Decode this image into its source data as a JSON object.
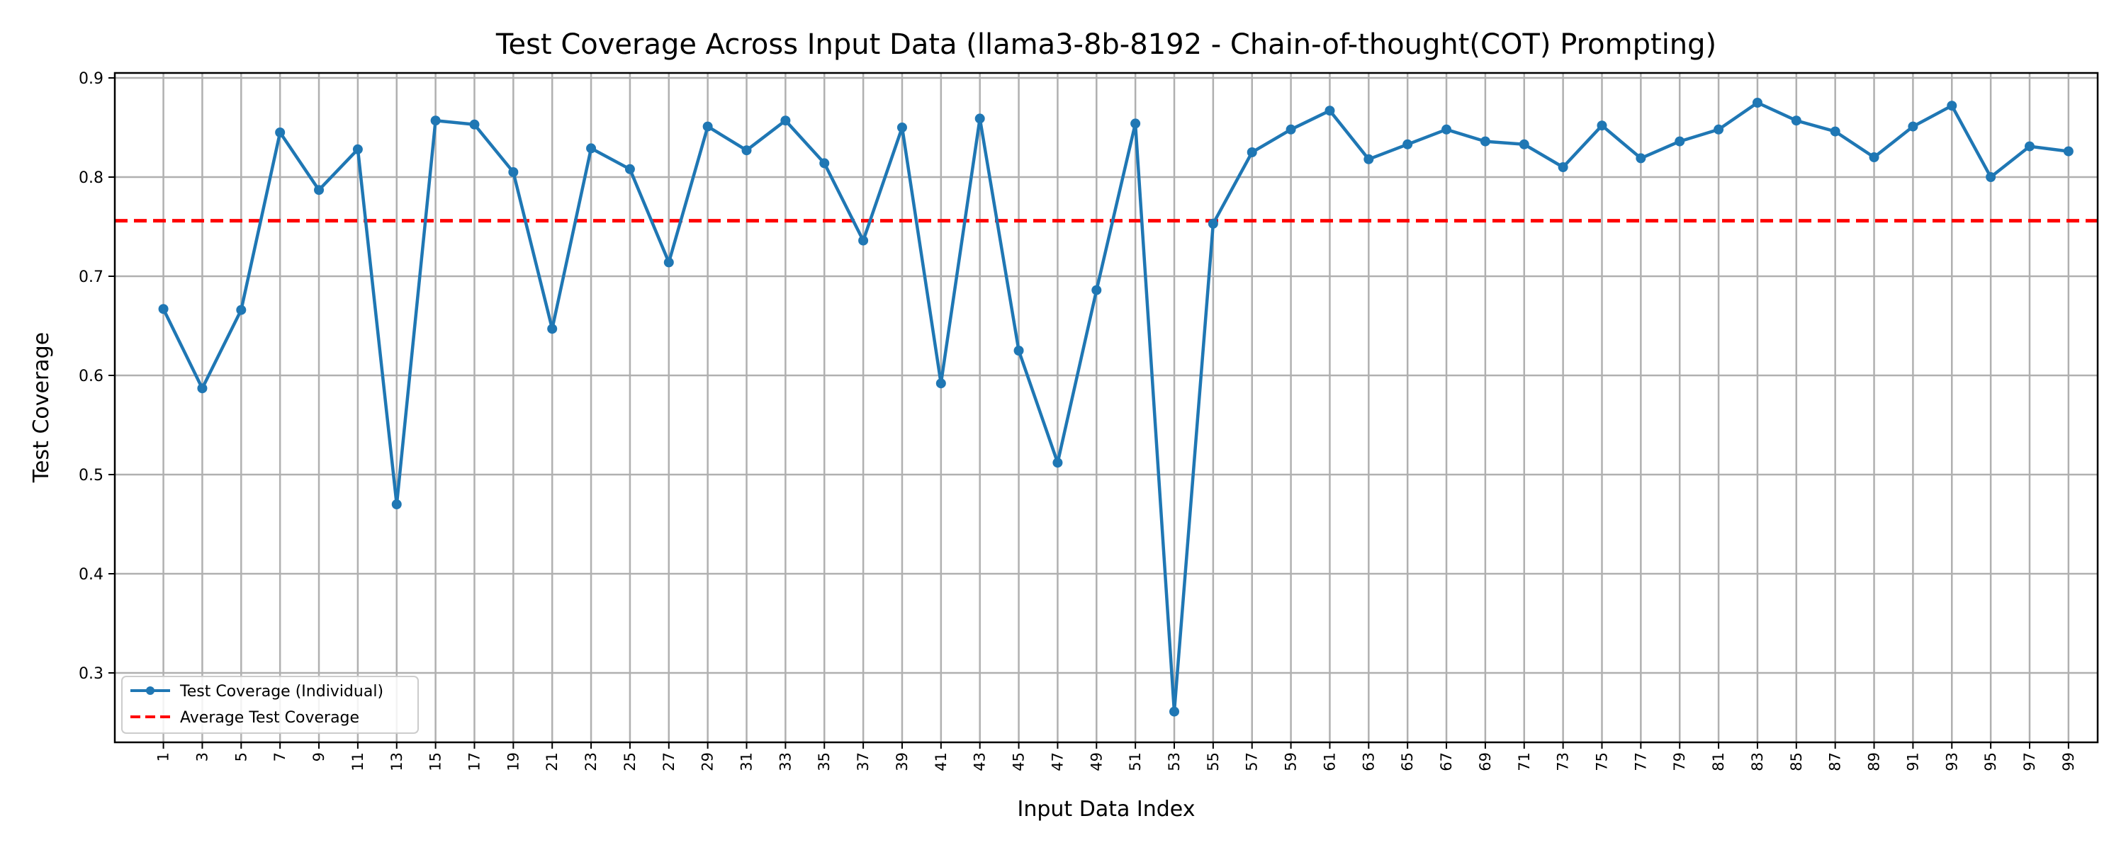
{
  "chart_data": {
    "type": "line",
    "title": "Test Coverage Across Input Data (llama3-8b-8192 - Chain-of-thought(COT) Prompting)",
    "xlabel": "Input Data Index",
    "ylabel": "Test Coverage",
    "xlim": [
      -1.5,
      100.5
    ],
    "ylim": [
      0.23,
      0.905
    ],
    "grid": true,
    "legend_position": "lower-left",
    "x": [
      1,
      3,
      5,
      7,
      9,
      11,
      13,
      15,
      17,
      19,
      21,
      23,
      25,
      27,
      29,
      31,
      33,
      35,
      37,
      39,
      41,
      43,
      45,
      47,
      49,
      51,
      53,
      55,
      57,
      59,
      61,
      63,
      65,
      67,
      69,
      71,
      73,
      75,
      77,
      79,
      81,
      83,
      85,
      87,
      89,
      91,
      93,
      95,
      97,
      99
    ],
    "x_tick_labels": [
      "1",
      "3",
      "5",
      "7",
      "9",
      "11",
      "13",
      "15",
      "17",
      "19",
      "21",
      "23",
      "25",
      "27",
      "29",
      "31",
      "33",
      "35",
      "37",
      "39",
      "41",
      "43",
      "45",
      "47",
      "49",
      "51",
      "53",
      "55",
      "57",
      "59",
      "61",
      "63",
      "65",
      "67",
      "69",
      "71",
      "73",
      "75",
      "77",
      "79",
      "81",
      "83",
      "85",
      "87",
      "89",
      "91",
      "93",
      "95",
      "97",
      "99"
    ],
    "y_ticks": [
      0.3,
      0.4,
      0.5,
      0.6,
      0.7,
      0.8,
      0.9
    ],
    "y_tick_labels": [
      "0.3",
      "0.4",
      "0.5",
      "0.6",
      "0.7",
      "0.8",
      "0.9"
    ],
    "series": [
      {
        "name": "Test Coverage (Individual)",
        "color": "#1f77b4",
        "style": "solid-with-markers",
        "values": [
          0.667,
          0.587,
          0.666,
          0.845,
          0.787,
          0.828,
          0.47,
          0.857,
          0.853,
          0.805,
          0.647,
          0.829,
          0.808,
          0.714,
          0.851,
          0.827,
          0.857,
          0.814,
          0.736,
          0.85,
          0.592,
          0.859,
          0.625,
          0.512,
          0.686,
          0.854,
          0.261,
          0.753,
          0.825,
          0.848,
          0.867,
          0.818,
          0.833,
          0.848,
          0.836,
          0.833,
          0.81,
          0.852,
          0.819,
          0.836,
          0.848,
          0.875,
          0.857,
          0.846,
          0.82,
          0.851,
          0.872,
          0.8,
          0.831,
          0.826
        ]
      }
    ],
    "reference_lines": [
      {
        "name": "Average Test Coverage",
        "color": "#ff0000",
        "style": "dashed",
        "y": 0.756
      }
    ]
  }
}
